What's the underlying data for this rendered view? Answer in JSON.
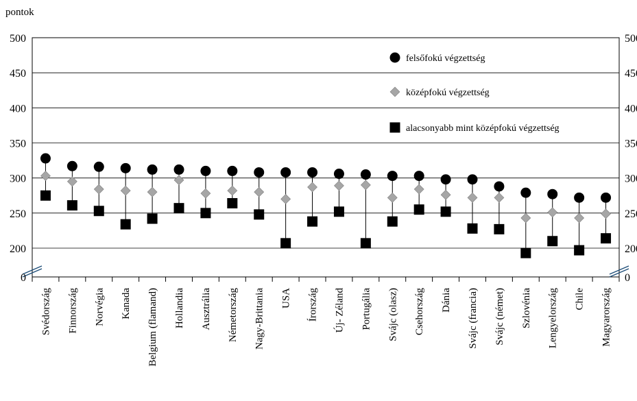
{
  "chart_data": {
    "type": "scatter",
    "unit_label": "pontok",
    "categories": [
      "Svédország",
      "Finnország",
      "Norvégia",
      "Kanada",
      "Belgium  (flamand)",
      "Hollandia",
      "Ausztrália",
      "Németország",
      "Nagy-Brittania",
      "USA",
      "Írország",
      "Új- Zéland",
      "Portugália",
      "Svájc (olasz)",
      "Csehország",
      "Dánia",
      "Svájc  (francia)",
      "Svájc  (német)",
      "Szlovénia",
      "Lengyelország",
      "Chile",
      "Magyarország"
    ],
    "series": [
      {
        "name": "felsőfokú végzettség",
        "marker": "circle",
        "color": "#000000",
        "values": [
          328,
          317,
          316,
          314,
          312,
          312,
          310,
          310,
          308,
          308,
          308,
          306,
          305,
          303,
          303,
          298,
          298,
          288,
          279,
          277,
          272,
          272
        ]
      },
      {
        "name": "középfokú   végzettség",
        "marker": "diamond",
        "color": "#a6a6a6",
        "values": [
          303,
          295,
          284,
          282,
          280,
          297,
          278,
          282,
          280,
          270,
          287,
          289,
          290,
          272,
          284,
          276,
          272,
          272,
          243,
          251,
          243,
          249
        ]
      },
      {
        "name": "alacsonyabb mint középfokú végzettség",
        "marker": "square",
        "color": "#000000",
        "values": [
          275,
          261,
          253,
          234,
          242,
          257,
          250,
          264,
          248,
          207,
          238,
          252,
          207,
          238,
          255,
          252,
          228,
          227,
          193,
          210,
          197,
          214
        ]
      }
    ],
    "y_axis": {
      "ticks": [
        "0",
        "200",
        "250",
        "300",
        "350",
        "400",
        "450",
        "500"
      ],
      "tick_values": [
        0,
        200,
        250,
        300,
        350,
        400,
        450,
        500
      ],
      "break_between": [
        0,
        200
      ],
      "ylim": [
        0,
        500
      ]
    },
    "grid": "horizontal",
    "legend_position": "top-right"
  }
}
